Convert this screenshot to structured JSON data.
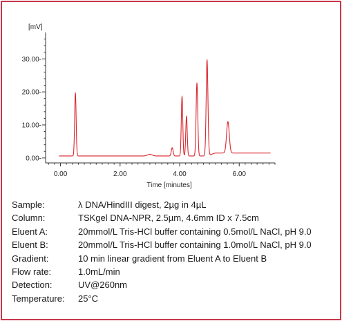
{
  "chart_data": {
    "type": "line",
    "xlabel": "Time [minutes]",
    "ylabel": "[mV]",
    "xlim": [
      -0.5,
      7.2
    ],
    "ylim": [
      -1.5,
      38
    ],
    "x_ticks": [
      {
        "value": 0,
        "label": "0.00"
      },
      {
        "value": 2,
        "label": "2.00"
      },
      {
        "value": 4,
        "label": "4.00"
      },
      {
        "value": 6,
        "label": "6.00"
      }
    ],
    "y_ticks": [
      {
        "value": 0,
        "label": "0.00-"
      },
      {
        "value": 10,
        "label": "10.00-"
      },
      {
        "value": 20,
        "label": "20.00-"
      },
      {
        "value": 30,
        "label": "30.00-"
      }
    ],
    "line_color": "#d9252c",
    "baseline": 0.6,
    "baseline_end": 1.5,
    "peaks": [
      {
        "x": 0.5,
        "height": 19.0,
        "width": 0.025
      },
      {
        "x": 3.0,
        "height": 0.5,
        "width": 0.08
      },
      {
        "x": 3.75,
        "height": 2.5,
        "width": 0.03
      },
      {
        "x": 4.08,
        "height": 18.0,
        "width": 0.025
      },
      {
        "x": 4.23,
        "height": 12.0,
        "width": 0.025
      },
      {
        "x": 4.58,
        "height": 22.0,
        "width": 0.028
      },
      {
        "x": 4.92,
        "height": 29.0,
        "width": 0.03
      },
      {
        "x": 5.62,
        "height": 9.5,
        "width": 0.045
      }
    ]
  },
  "info_rows": [
    {
      "key": "Sample:",
      "value": "λ DNA/HindIII digest, 2µg in 4µL"
    },
    {
      "key": "Column:",
      "value": "TSKgel DNA-NPR, 2.5µm, 4.6mm ID x 7.5cm"
    },
    {
      "key": "Eluent A:",
      "value": "20mmol/L Tris-HCl buffer containing 0.5mol/L NaCl, pH 9.0"
    },
    {
      "key": "Eluent B:",
      "value": "20mmol/L Tris-HCl buffer containing 1.0mol/L NaCl, pH 9.0"
    },
    {
      "key": "Gradient:",
      "value": "10 min linear gradient from Eluent A to Eluent B"
    },
    {
      "key": "Flow rate:",
      "value": "1.0mL/min"
    },
    {
      "key": "Detection:",
      "value": "UV@260nm"
    },
    {
      "key": "Temperature:",
      "value": "25°C"
    }
  ]
}
